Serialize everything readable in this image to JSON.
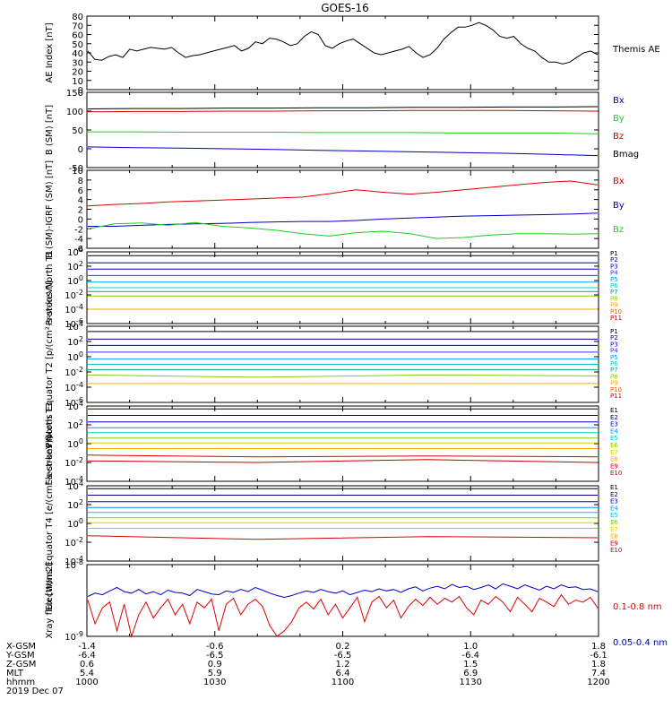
{
  "title": "GOES-16",
  "colors": {
    "black": "#000000",
    "blue": "#0000cc",
    "green": "#22cc22",
    "red": "#dd0000",
    "navy": "#000080",
    "blue2": "#3333ff",
    "dodger": "#0099ff",
    "cyan": "#00cccc",
    "teal": "#00aa88",
    "lime": "#88cc00",
    "yellow": "#ddcc00",
    "gold": "#ffaa00",
    "orange": "#ff5500",
    "darkred": "#cc0000"
  },
  "chart_data": [
    {
      "type": "line",
      "ylabel": "AE Index [nT]",
      "ylim": [
        0,
        80
      ],
      "yticks": [
        "0",
        "10",
        "20",
        "30",
        "40",
        "50",
        "60",
        "70",
        "80"
      ],
      "series": [
        {
          "name": "Themis AE",
          "color": "black",
          "values": [
            42,
            33,
            32,
            36,
            38,
            35,
            44,
            42,
            44,
            46,
            45,
            44,
            46,
            40,
            35,
            37,
            38,
            40,
            42,
            44,
            46,
            48,
            42,
            45,
            52,
            50,
            56,
            55,
            52,
            48,
            50,
            58,
            63,
            60,
            48,
            45,
            50,
            53,
            55,
            50,
            45,
            40,
            38,
            40,
            42,
            44,
            47,
            40,
            35,
            38,
            45,
            55,
            62,
            68,
            68,
            70,
            73,
            70,
            65,
            58,
            56,
            58,
            50,
            45,
            42,
            35,
            30,
            30,
            28,
            30,
            35,
            40,
            42,
            38
          ]
        }
      ]
    },
    {
      "type": "line",
      "ylabel": "B (SM) [nT]",
      "ylim": [
        -50,
        150
      ],
      "yticks": [
        "-50",
        "0",
        "50",
        "100",
        "150"
      ],
      "series": [
        {
          "name": "Bx",
          "color": "blue",
          "values": [
            5,
            3,
            2,
            0,
            -2,
            -4,
            -6,
            -8,
            -10,
            -12,
            -15,
            -18
          ]
        },
        {
          "name": "By",
          "color": "green",
          "values": [
            45,
            45,
            44,
            44,
            44,
            43,
            43,
            43,
            42,
            42,
            42,
            40
          ]
        },
        {
          "name": "Bz",
          "color": "red",
          "values": [
            98,
            99,
            99,
            100,
            100,
            101,
            101,
            102,
            102,
            102,
            101,
            100
          ]
        },
        {
          "name": "Bmag",
          "color": "black",
          "values": [
            106,
            107,
            107,
            108,
            108,
            109,
            109,
            110,
            110,
            111,
            111,
            112
          ]
        }
      ]
    },
    {
      "type": "line",
      "ylabel": "B (SM)-IGRF (SM) [nT]",
      "ylim": [
        -6,
        10
      ],
      "yticks": [
        "-6",
        "-4",
        "-2",
        "0",
        "2",
        "4",
        "6",
        "8",
        "10"
      ],
      "series": [
        {
          "name": "Bx",
          "color": "red",
          "values": [
            2.7,
            3.0,
            3.2,
            3.5,
            3.7,
            3.9,
            4.1,
            4.3,
            4.5,
            5.2,
            6.0,
            5.5,
            5.1,
            5.5,
            6.0,
            6.5,
            7.0,
            7.5,
            7.8,
            7.0
          ]
        },
        {
          "name": "By",
          "color": "blue",
          "values": [
            -1.5,
            -1.5,
            -1.3,
            -1.1,
            -1.0,
            -0.9,
            -0.7,
            -0.6,
            -0.5,
            -0.5,
            -0.3,
            0,
            0.2,
            0.4,
            0.6,
            0.7,
            0.8,
            0.9,
            1.0,
            1.2
          ]
        },
        {
          "name": "Bz",
          "color": "green",
          "values": [
            -2.0,
            -1.0,
            -0.8,
            -1.3,
            -0.7,
            -1.5,
            -1.8,
            -2.3,
            -3.0,
            -3.5,
            -2.8,
            -2.5,
            -3.0,
            -4.0,
            -3.8,
            -3.3,
            -3.0,
            -3.0,
            -3.1,
            -3.0
          ]
        }
      ]
    },
    {
      "type": "line",
      "ylabel": "Protons North T1",
      "yscale": "log",
      "ylim": [
        1e-06,
        10000.0
      ],
      "yticks": [
        "10^-6",
        "10^-4",
        "10^-2",
        "10^0",
        "10^2",
        "10^4"
      ],
      "series": [
        {
          "name": "P1",
          "color": "black",
          "values": [
            3000.0,
            3000.0,
            3000.0,
            3000.0
          ]
        },
        {
          "name": "P2",
          "color": "navy",
          "values": [
            300.0,
            300.0,
            300.0,
            300.0
          ]
        },
        {
          "name": "P3",
          "color": "blue",
          "values": [
            40.0,
            40.0,
            40.0,
            40.0
          ]
        },
        {
          "name": "P4",
          "color": "blue2",
          "values": [
            5,
            5,
            5,
            5
          ]
        },
        {
          "name": "P5",
          "color": "dodger",
          "values": [
            0.6,
            0.6,
            0.6,
            0.6
          ]
        },
        {
          "name": "P6",
          "color": "cyan",
          "values": [
            0.1,
            0.1,
            0.1,
            0.1
          ]
        },
        {
          "name": "P7",
          "color": "teal",
          "values": [
            0.03,
            0.03,
            0.03,
            0.03
          ]
        },
        {
          "name": "P8",
          "color": "lime",
          "values": [
            0.007,
            0.007,
            0.007,
            0.007
          ]
        },
        {
          "name": "P9",
          "color": "gold",
          "values": [
            0.0001,
            0.0001,
            0.0001,
            0.0001
          ]
        },
        {
          "name": "P10",
          "color": "orange",
          "values": []
        },
        {
          "name": "P11",
          "color": "red",
          "values": []
        }
      ]
    },
    {
      "type": "line",
      "ylabel": "Protons Equator T2 [p/(cm²-s-sr-keV)]",
      "yscale": "log",
      "ylim": [
        1e-06,
        10000.0
      ],
      "yticks": [
        "10^-6",
        "10^-4",
        "10^-2",
        "10^0",
        "10^2",
        "10^4"
      ],
      "series": [
        {
          "name": "P1",
          "color": "black",
          "values": [
            2000.0,
            2000.0,
            2000.0,
            2000.0
          ]
        },
        {
          "name": "P2",
          "color": "navy",
          "values": [
            200.0,
            200.0,
            200.0,
            200.0
          ]
        },
        {
          "name": "P3",
          "color": "blue",
          "values": [
            30.0,
            30.0,
            30.0,
            30.0
          ]
        },
        {
          "name": "P4",
          "color": "blue2",
          "values": [
            4,
            4,
            4,
            4
          ]
        },
        {
          "name": "P5",
          "color": "dodger",
          "values": [
            0.5,
            0.5,
            0.5,
            0.5
          ]
        },
        {
          "name": "P6",
          "color": "cyan",
          "values": [
            0.1,
            0.1,
            0.1,
            0.1
          ]
        },
        {
          "name": "P7",
          "color": "teal",
          "values": [
            0.02,
            0.02,
            0.02,
            0.02
          ]
        },
        {
          "name": "P8",
          "color": "lime",
          "values": [
            0.004,
            0.002,
            0.004,
            0.003
          ]
        },
        {
          "name": "P9",
          "color": "gold",
          "values": [
            0.0003,
            0.0003,
            0.0003,
            0.0003
          ]
        },
        {
          "name": "P10",
          "color": "orange",
          "values": []
        },
        {
          "name": "P11",
          "color": "red",
          "values": []
        }
      ]
    },
    {
      "type": "line",
      "ylabel": "Electrons North T3",
      "yscale": "log",
      "ylim": [
        0.0001,
        10000.0
      ],
      "yticks": [
        "10^-4",
        "10^-2",
        "10^0",
        "10^2",
        "10^4"
      ],
      "series": [
        {
          "name": "E1",
          "color": "black",
          "values": [
            5000.0,
            5000.0,
            5000.0,
            5000.0
          ]
        },
        {
          "name": "E2",
          "color": "navy",
          "values": [
            1000.0,
            1000.0,
            1000.0,
            1000.0
          ]
        },
        {
          "name": "E3",
          "color": "blue",
          "values": [
            200.0,
            200.0,
            200.0,
            200.0
          ]
        },
        {
          "name": "E4",
          "color": "dodger",
          "values": [
            50.0,
            50.0,
            50.0,
            50.0
          ]
        },
        {
          "name": "E5",
          "color": "cyan",
          "values": [
            15.0,
            15.0,
            15.0,
            15.0
          ]
        },
        {
          "name": "E6",
          "color": "lime",
          "values": [
            4,
            4,
            4,
            4
          ]
        },
        {
          "name": "E7",
          "color": "yellow",
          "values": [
            1.2,
            1.2,
            1.2,
            1.2
          ]
        },
        {
          "name": "E8",
          "color": "gold",
          "values": [
            0.3,
            0.3,
            0.3,
            0.3
          ]
        },
        {
          "name": "E9",
          "color": "red",
          "values": [
            0.06,
            0.04,
            0.05,
            0.04
          ]
        },
        {
          "name": "E10",
          "color": "darkred",
          "values": [
            0.015,
            0.01,
            0.02,
            0.01
          ]
        }
      ]
    },
    {
      "type": "line",
      "ylabel": "Electrons Equator T4 [e/(cm²-s-sr-keV)]",
      "yscale": "log",
      "ylim": [
        0.0001,
        10000.0
      ],
      "yticks": [
        "10^-4",
        "10^-2",
        "10^0",
        "10^2",
        "10^4"
      ],
      "series": [
        {
          "name": "E1",
          "color": "black",
          "values": [
            5000.0,
            5000.0,
            5000.0,
            5000.0
          ]
        },
        {
          "name": "E2",
          "color": "navy",
          "values": [
            1000.0,
            1000.0,
            1000.0,
            1000.0
          ]
        },
        {
          "name": "E3",
          "color": "blue",
          "values": [
            200.0,
            200.0,
            200.0,
            200.0
          ]
        },
        {
          "name": "E4",
          "color": "dodger",
          "values": [
            50.0,
            50.0,
            50.0,
            50.0
          ]
        },
        {
          "name": "E5",
          "color": "cyan",
          "values": [
            15.0,
            15.0,
            15.0,
            15.0
          ]
        },
        {
          "name": "E6",
          "color": "lime",
          "values": [
            4,
            4,
            4,
            4
          ]
        },
        {
          "name": "E7",
          "color": "yellow",
          "values": [
            1.2,
            1.2,
            1.2,
            1.2
          ]
        },
        {
          "name": "E8",
          "color": "gold",
          "values": [
            0.3,
            0.3,
            0.3,
            0.3
          ]
        },
        {
          "name": "E9",
          "color": "red",
          "values": [
            0.05,
            0.02,
            0.04,
            0.03
          ]
        },
        {
          "name": "E10",
          "color": "darkred",
          "values": []
        }
      ]
    },
    {
      "type": "line",
      "ylabel": "Xray flux [W/m2]",
      "yscale": "log",
      "ylim": [
        1e-09,
        1e-08
      ],
      "yticks": [
        "10^-9",
        "10^-8"
      ],
      "series": [
        {
          "name": "0.1-0.8 nm",
          "color": "red",
          "values": [
            3.2e-09,
            1.5e-09,
            2.5e-09,
            3e-09,
            1.2e-09,
            2.8e-09,
            1e-09,
            2e-09,
            3e-09,
            1.8e-09,
            2.5e-09,
            3.3e-09,
            2e-09,
            2.8e-09,
            1.5e-09,
            3e-09,
            2.5e-09,
            3.3e-09,
            1.2e-09,
            2.8e-09,
            3.4e-09,
            2e-09,
            2.8e-09,
            3.3e-09,
            2.6e-09,
            1.4e-09,
            1e-09,
            1.2e-09,
            1.6e-09,
            2.5e-09,
            3e-09,
            2.4e-09,
            3.3e-09,
            2e-09,
            2.8e-09,
            1.8e-09,
            2.5e-09,
            3.5e-09,
            1.6e-09,
            3e-09,
            3.6e-09,
            2.5e-09,
            3.2e-09,
            1.8e-09,
            2.6e-09,
            3.3e-09,
            2.7e-09,
            3.5e-09,
            2.8e-09,
            3.4e-09,
            3e-09,
            3.6e-09,
            2.5e-09,
            2e-09,
            3.2e-09,
            2.8e-09,
            3.6e-09,
            3e-09,
            2.2e-09,
            3.5e-09,
            2.8e-09,
            2.2e-09,
            3.4e-09,
            3e-09,
            2.6e-09,
            3.8e-09,
            2.8e-09,
            3.2e-09,
            3e-09,
            3.5e-09,
            2.5e-09
          ]
        },
        {
          "name": "0.05-0.4 nm",
          "color": "blue",
          "values": [
            3.6e-09,
            4e-09,
            3.8e-09,
            4.3e-09,
            4.8e-09,
            4.2e-09,
            4e-09,
            4.5e-09,
            3.9e-09,
            4.2e-09,
            3.8e-09,
            4.4e-09,
            4.1e-09,
            4e-09,
            3.7e-09,
            4.5e-09,
            4.2e-09,
            3.9e-09,
            3.8e-09,
            4.3e-09,
            4.1e-09,
            4.5e-09,
            4.2e-09,
            4.8e-09,
            4.4e-09,
            4e-09,
            3.7e-09,
            3.5e-09,
            3.7e-09,
            4e-09,
            4.3e-09,
            4.1e-09,
            4.5e-09,
            4.2e-09,
            4e-09,
            4.3e-09,
            3.8e-09,
            4.1e-09,
            4.4e-09,
            4.2e-09,
            4.6e-09,
            4.3e-09,
            4.5e-09,
            4.1e-09,
            4.6e-09,
            4.9e-09,
            4.3e-09,
            4.7e-09,
            5e-09,
            4.6e-09,
            5.3e-09,
            4.8e-09,
            5e-09,
            4.5e-09,
            4.8e-09,
            5.2e-09,
            4.6e-09,
            5.4e-09,
            5e-09,
            4.6e-09,
            5.2e-09,
            4.8e-09,
            4.4e-09,
            5e-09,
            4.6e-09,
            5.2e-09,
            4.8e-09,
            4.9e-09,
            4.5e-09,
            4.6e-09,
            4.2e-09
          ]
        }
      ]
    }
  ],
  "ephemeris": {
    "labels": [
      "X-GSM",
      "Y-GSM",
      "Z-GSM",
      "MLT",
      "hhmm",
      "2019 Dec 07"
    ],
    "columns": [
      [
        "-1.4",
        "-6.4",
        "0.6",
        "5.4",
        "1000"
      ],
      [
        "-0.6",
        "-6.5",
        "0.9",
        "5.9",
        "1030"
      ],
      [
        "0.2",
        "-6.5",
        "1.2",
        "6.4",
        "1100"
      ],
      [
        "1.0",
        "-6.4",
        "1.5",
        "6.9",
        "1130"
      ],
      [
        "1.8",
        "-6.1",
        "1.8",
        "7.4",
        "1200"
      ]
    ]
  }
}
